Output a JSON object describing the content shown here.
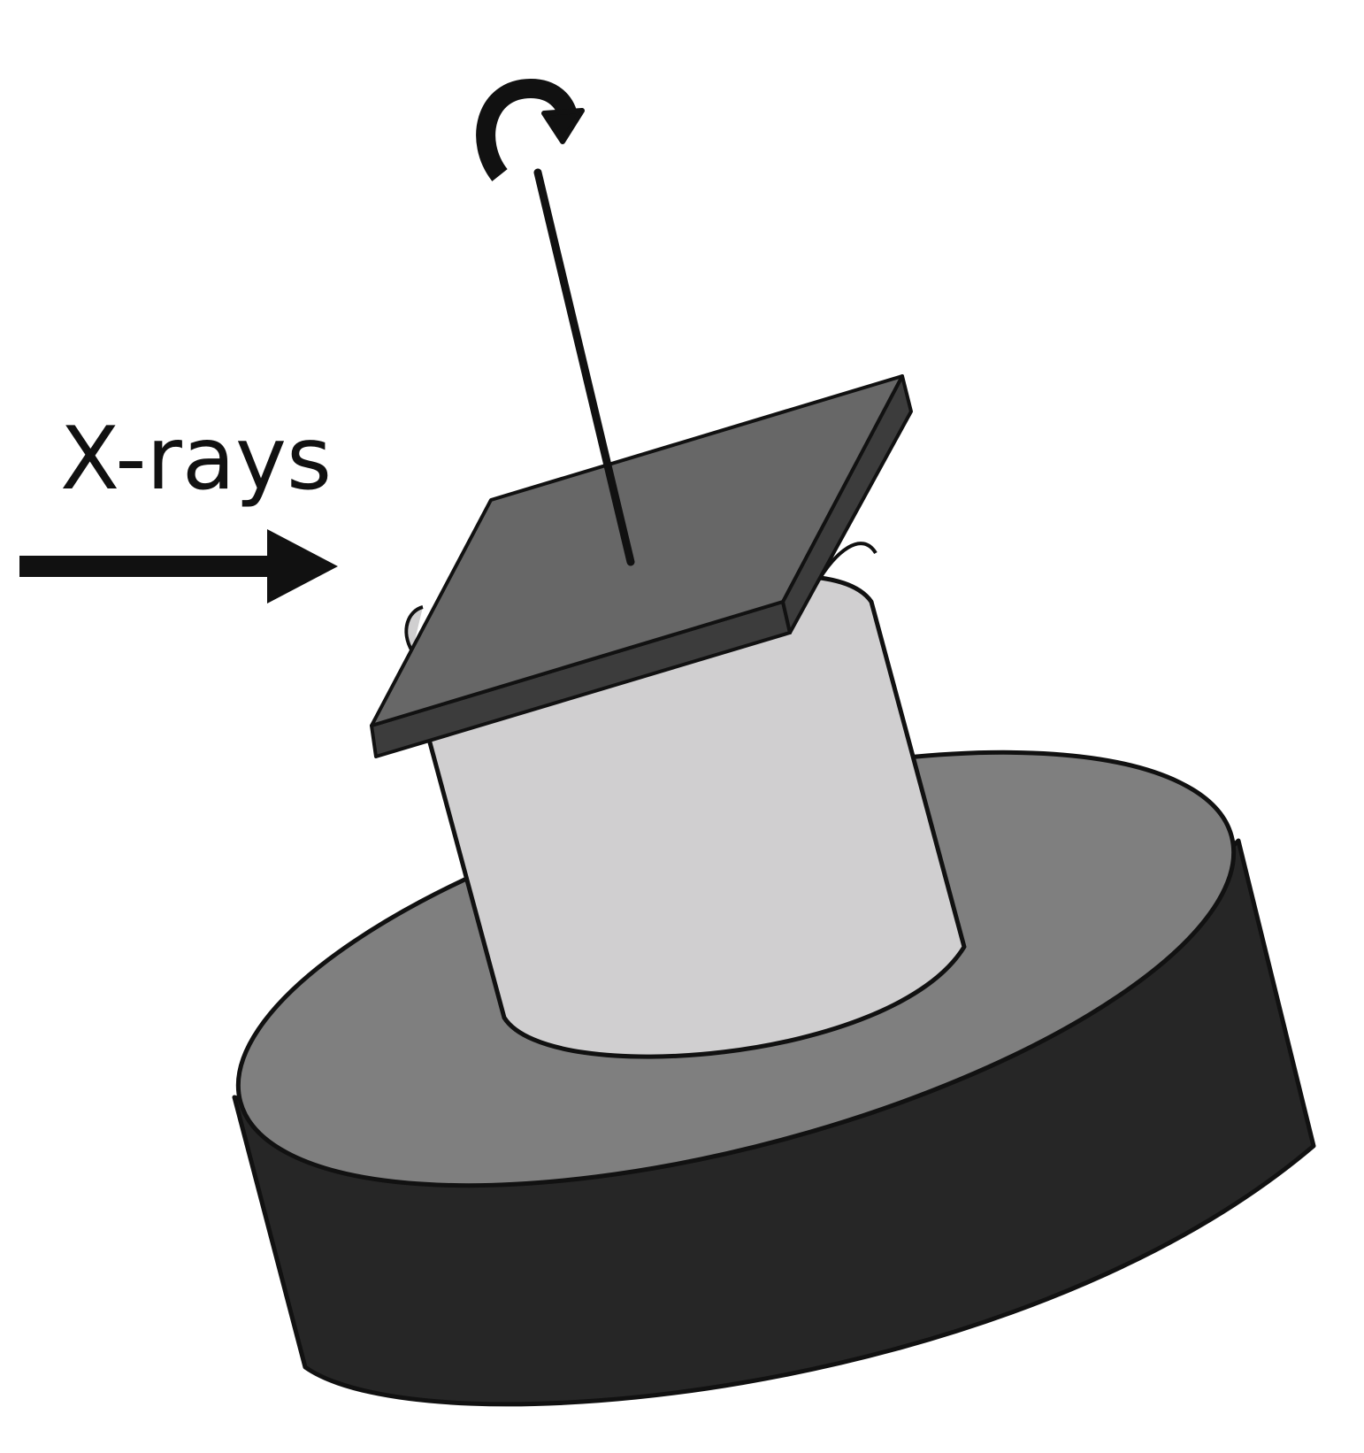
{
  "diagram": {
    "labels": {
      "beam": "X-rays"
    },
    "components": {
      "beam_arrow": "arrow-right-icon",
      "rotation_indicator": "rotate-clockwise-icon",
      "rotation_axis": "rotation-axis",
      "sample_plate": "sample-plate",
      "cylinder_mount": "cylinder-mount",
      "base_stage": "base-stage"
    },
    "colors": {
      "background": "#ffffff",
      "outline": "#111111",
      "base_top": "#7f7f7f",
      "base_side": "#262626",
      "cylinder": "#d0cfd0",
      "plate_top": "#676767",
      "plate_edge": "#3c3c3c"
    }
  }
}
